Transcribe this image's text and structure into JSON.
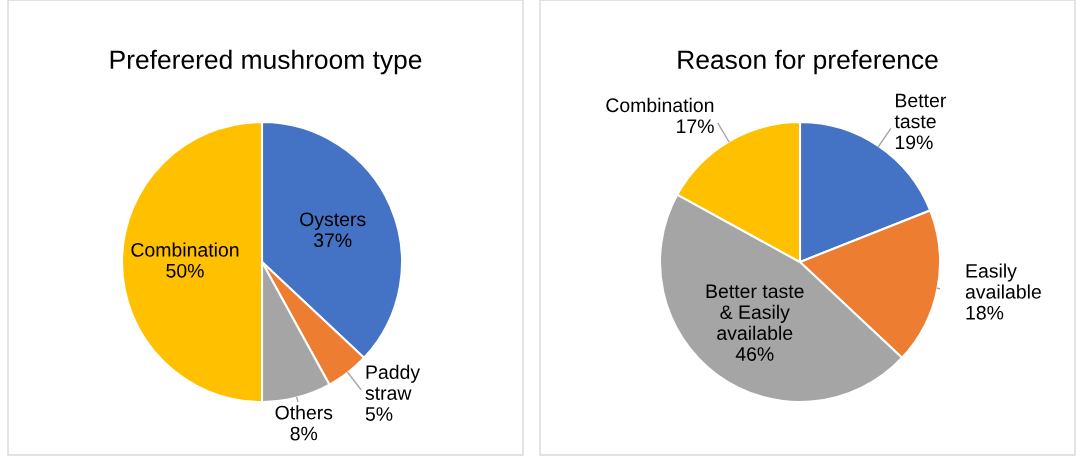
{
  "chart_data": [
    {
      "type": "pie",
      "title": "Preferered mushroom type",
      "categories": [
        "Oysters",
        "Paddy\nstraw",
        "Others",
        "Combination"
      ],
      "values": [
        37,
        5,
        8,
        50
      ],
      "value_labels": [
        "37%",
        "5%",
        "8%",
        "50%"
      ],
      "colors": [
        "#4472c4",
        "#ed7d31",
        "#a5a5a5",
        "#ffc000"
      ],
      "legend": false
    },
    {
      "type": "pie",
      "title": "Reason for preference",
      "categories": [
        "Better\ntaste",
        "Easily\navailable",
        "Better taste\n& Easily\navailable",
        "Combination"
      ],
      "values": [
        19,
        18,
        46,
        17
      ],
      "value_labels": [
        "19%",
        "18%",
        "46%",
        "17%"
      ],
      "colors": [
        "#4472c4",
        "#ed7d31",
        "#a5a5a5",
        "#ffc000"
      ],
      "legend": false
    }
  ]
}
